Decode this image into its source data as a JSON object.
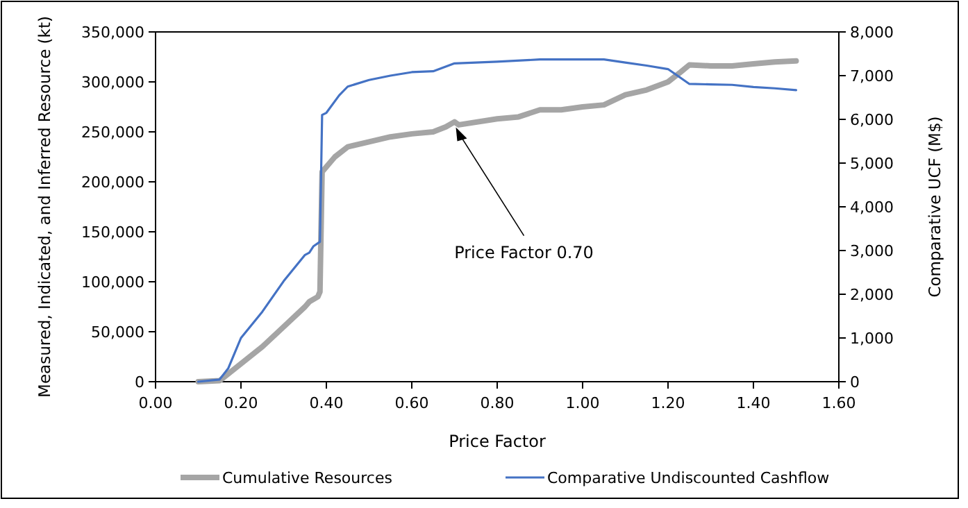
{
  "chart_data": {
    "type": "line",
    "xlabel": "Price Factor",
    "ylabel": "Measured, Indicated, and Inferred Resource (kt)",
    "y2label": "Comparative UCF (M$)",
    "xlim": [
      0,
      1.6
    ],
    "xticks": [
      {
        "value": 0,
        "label": "0.00"
      },
      {
        "value": 0.2,
        "label": "0.20"
      },
      {
        "value": 0.4,
        "label": "0.40"
      },
      {
        "value": 0.6,
        "label": "0.60"
      },
      {
        "value": 0.8,
        "label": "0.80"
      },
      {
        "value": 1,
        "label": "1.00"
      },
      {
        "value": 1.2,
        "label": "1.20"
      },
      {
        "value": 1.4,
        "label": "1.40"
      },
      {
        "value": 1.6,
        "label": "1.60"
      }
    ],
    "ylim": [
      0,
      350000
    ],
    "yticks": [
      {
        "value": 0,
        "label": "0"
      },
      {
        "value": 50000,
        "label": "50,000"
      },
      {
        "value": 100000,
        "label": "100,000"
      },
      {
        "value": 150000,
        "label": "150,000"
      },
      {
        "value": 200000,
        "label": "200,000"
      },
      {
        "value": 250000,
        "label": "250,000"
      },
      {
        "value": 300000,
        "label": "300,000"
      },
      {
        "value": 350000,
        "label": "350,000"
      }
    ],
    "y2lim": [
      0,
      8000
    ],
    "y2ticks": [
      {
        "value": 0,
        "label": "0"
      },
      {
        "value": 1000,
        "label": "1,000"
      },
      {
        "value": 2000,
        "label": "2,000"
      },
      {
        "value": 3000,
        "label": "3,000"
      },
      {
        "value": 4000,
        "label": "4,000"
      },
      {
        "value": 5000,
        "label": "5,000"
      },
      {
        "value": 6000,
        "label": "6,000"
      },
      {
        "value": 7000,
        "label": "7,000"
      },
      {
        "value": 8000,
        "label": "8,000"
      }
    ],
    "legend": "bottom",
    "grid": false,
    "series": [
      {
        "name": "Cumulative Resources",
        "color": "#a5a5a5",
        "x": [
          0.1,
          0.15,
          0.2,
          0.25,
          0.3,
          0.35,
          0.36,
          0.38,
          0.385,
          0.39,
          0.42,
          0.45,
          0.5,
          0.55,
          0.6,
          0.65,
          0.68,
          0.7,
          0.71,
          0.8,
          0.85,
          0.9,
          0.95,
          1.0,
          1.05,
          1.1,
          1.15,
          1.2,
          1.23,
          1.25,
          1.3,
          1.35,
          1.4,
          1.45,
          1.5
        ],
        "values": [
          0,
          1000,
          18000,
          35000,
          55000,
          75000,
          80000,
          85000,
          90000,
          210000,
          225000,
          235000,
          240000,
          245000,
          248000,
          250000,
          255000,
          260000,
          257000,
          263000,
          265000,
          272000,
          272000,
          275000,
          277000,
          287000,
          292000,
          300000,
          310000,
          317000,
          316000,
          316000,
          318000,
          320000,
          321000
        ]
      },
      {
        "name": "Comparative Undiscounted Cashflow",
        "color": "#4472c4",
        "axis": "y2",
        "x": [
          0.1,
          0.15,
          0.17,
          0.2,
          0.25,
          0.3,
          0.35,
          0.36,
          0.37,
          0.385,
          0.39,
          0.4,
          0.43,
          0.45,
          0.5,
          0.55,
          0.6,
          0.65,
          0.7,
          0.8,
          0.9,
          1.0,
          1.05,
          1.1,
          1.15,
          1.2,
          1.25,
          1.3,
          1.35,
          1.4,
          1.45,
          1.5
        ],
        "values": [
          0,
          50,
          300,
          1000,
          1600,
          2300,
          2900,
          2950,
          3100,
          3200,
          6100,
          6150,
          6550,
          6750,
          6900,
          7000,
          7080,
          7100,
          7280,
          7320,
          7370,
          7370,
          7370,
          7300,
          7230,
          7150,
          6810,
          6800,
          6790,
          6740,
          6710,
          6670
        ]
      }
    ],
    "annotations": [
      {
        "text": "Price Factor 0.70",
        "x": 0.7,
        "y": 260000
      }
    ]
  }
}
